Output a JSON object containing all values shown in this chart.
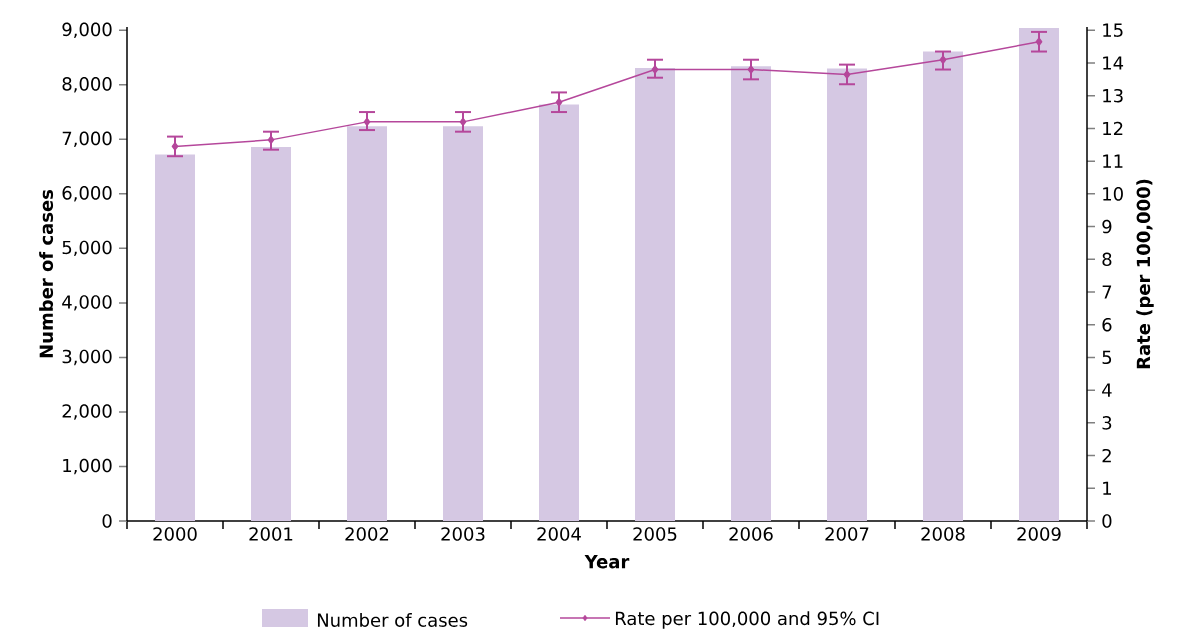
{
  "chart_data": {
    "type": "bar",
    "xlabel": "Year",
    "ylabel": "Number of cases",
    "y2label": "Rate (per 100,000)",
    "categories": [
      "2000",
      "2001",
      "2002",
      "2003",
      "2004",
      "2005",
      "2006",
      "2007",
      "2008",
      "2009"
    ],
    "series": [
      {
        "name": "Number of cases",
        "color": "#d5c8e3",
        "values": [
          6720,
          6860,
          7240,
          7240,
          7640,
          8310,
          8340,
          8300,
          8610,
          9040
        ]
      },
      {
        "name": "Rate per 100,000 and 95% CI",
        "type": "line",
        "axis": "y2",
        "color": "#b5479b",
        "marker": "diamond",
        "values": [
          11.45,
          11.65,
          12.2,
          12.2,
          12.8,
          13.8,
          13.8,
          13.65,
          14.1,
          14.65
        ],
        "errors": [
          [
            11.15,
            11.75
          ],
          [
            11.35,
            11.9
          ],
          [
            11.95,
            12.5
          ],
          [
            11.9,
            12.5
          ],
          [
            12.5,
            13.1
          ],
          [
            13.55,
            14.1
          ],
          [
            13.5,
            14.1
          ],
          [
            13.35,
            13.95
          ],
          [
            13.8,
            14.35
          ],
          [
            14.35,
            14.95
          ]
        ]
      }
    ],
    "ylim": [
      0,
      9060
    ],
    "yticks": [
      {
        "value": 0,
        "label": "0"
      },
      {
        "value": 1000,
        "label": "1,000"
      },
      {
        "value": 2000,
        "label": "2,000"
      },
      {
        "value": 3000,
        "label": "3,000"
      },
      {
        "value": 4000,
        "label": "4,000"
      },
      {
        "value": 5000,
        "label": "5,000"
      },
      {
        "value": 6000,
        "label": "6,000"
      },
      {
        "value": 7000,
        "label": "7,000"
      },
      {
        "value": 8000,
        "label": "8,000"
      },
      {
        "value": 9000,
        "label": "9,000"
      }
    ],
    "y2lim": [
      0,
      15.1
    ],
    "y2ticks": [
      0,
      1,
      2,
      3,
      4,
      5,
      6,
      7,
      8,
      9,
      10,
      11,
      12,
      13,
      14,
      15
    ],
    "grid": false,
    "legend": "bottom"
  }
}
